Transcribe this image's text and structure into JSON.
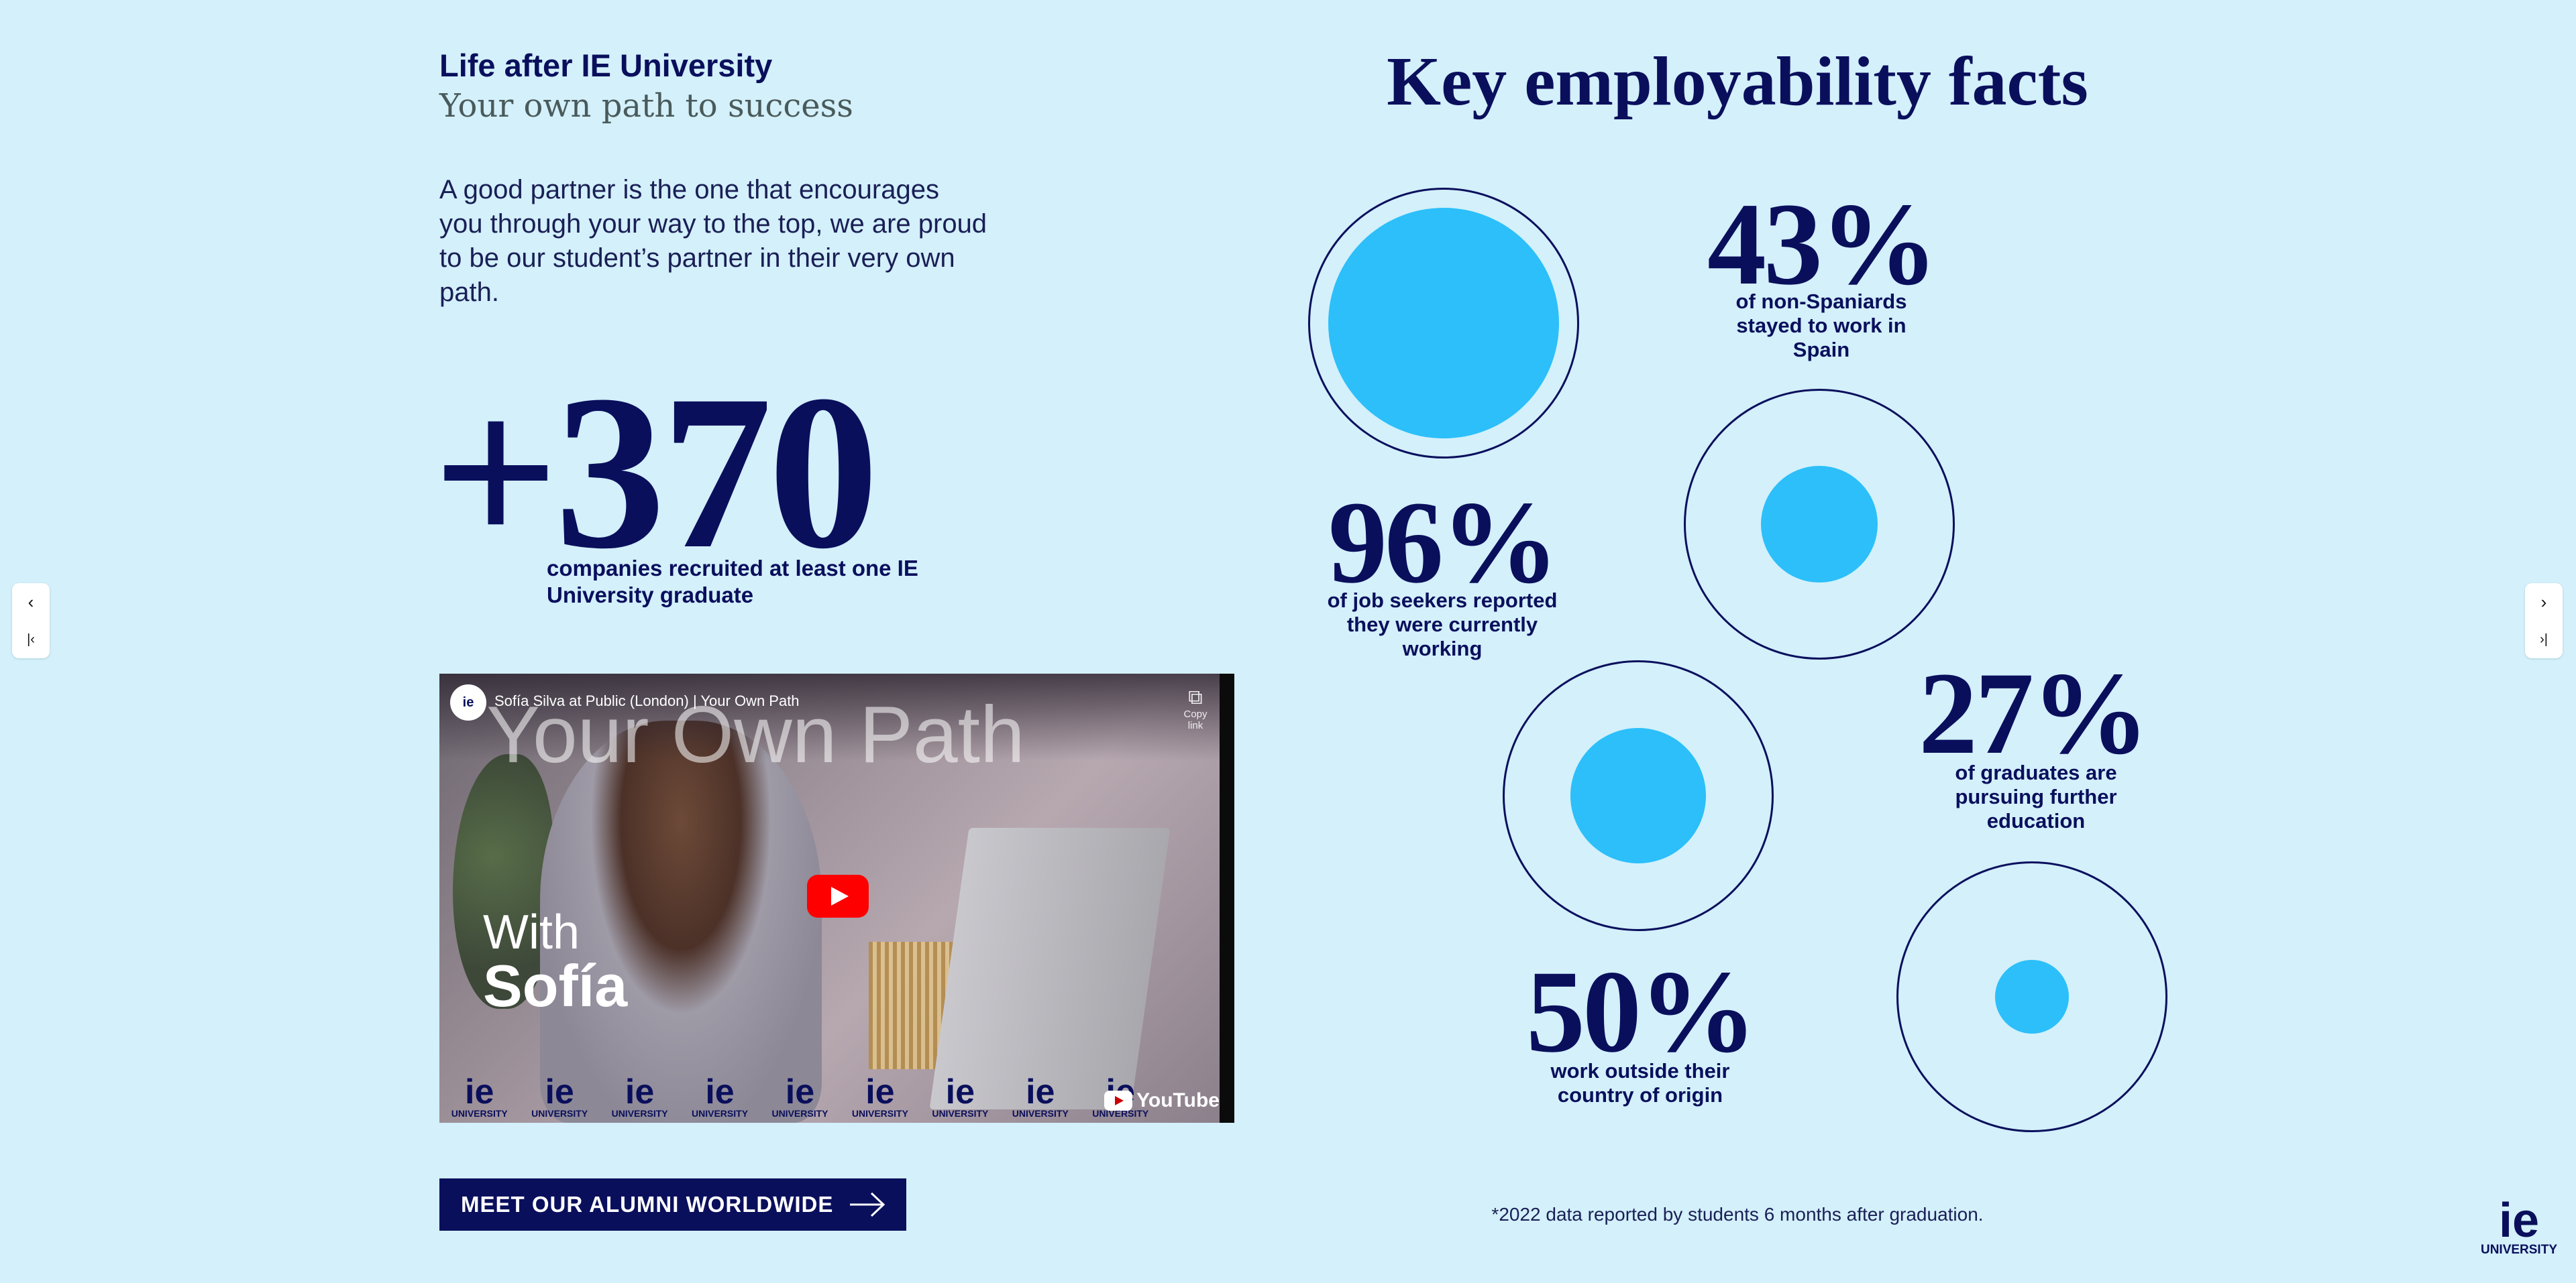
{
  "left": {
    "eyebrow": "Life after IE University",
    "subtitle": "Your own path to success",
    "intro": "A good partner is the one that encourages you through your way to the top, we are proud to be our student’s partner in their very own path.",
    "big_number": "+370",
    "big_caption": "companies recruited at least one IE University graduate"
  },
  "video": {
    "channel_logo": "ie",
    "title": "Sofía Silva at Public (London) | Your Own Path",
    "copy_link_label": "Copy link",
    "watermark": "Your Own Path",
    "with_label": "With",
    "name_label": "Sofía",
    "strip_logo_text": "ie",
    "strip_logo_subtext": "UNIVERSITY",
    "youtube_label": "YouTube"
  },
  "cta": {
    "label": "MEET OUR ALUMNI WORLDWIDE",
    "icon": "arrow-right-icon"
  },
  "facts": {
    "title": "Key employability facts",
    "items": [
      {
        "value": "43%",
        "caption": "of non-Spaniards stayed to work in Spain",
        "share": 0.43
      },
      {
        "value": "96%",
        "caption": "of job seekers reported they were currently working",
        "share": 0.96
      },
      {
        "value": "27%",
        "caption": "of graduates are pursuing further education",
        "share": 0.27
      },
      {
        "value": "50%",
        "caption": "work outside their country of origin",
        "share": 0.5
      }
    ],
    "footnote": "*2022 data reported by students 6 months after graduation."
  },
  "nav": {
    "prev_icon": "‹",
    "first_icon": "|‹",
    "next_icon": "›",
    "last_icon": "›|"
  },
  "brand": {
    "logo_text": "ie",
    "logo_subtext": "UNIVERSITY",
    "accent": "#2cbffa",
    "navy": "#0a0f5c",
    "background": "#d3f0fb"
  }
}
